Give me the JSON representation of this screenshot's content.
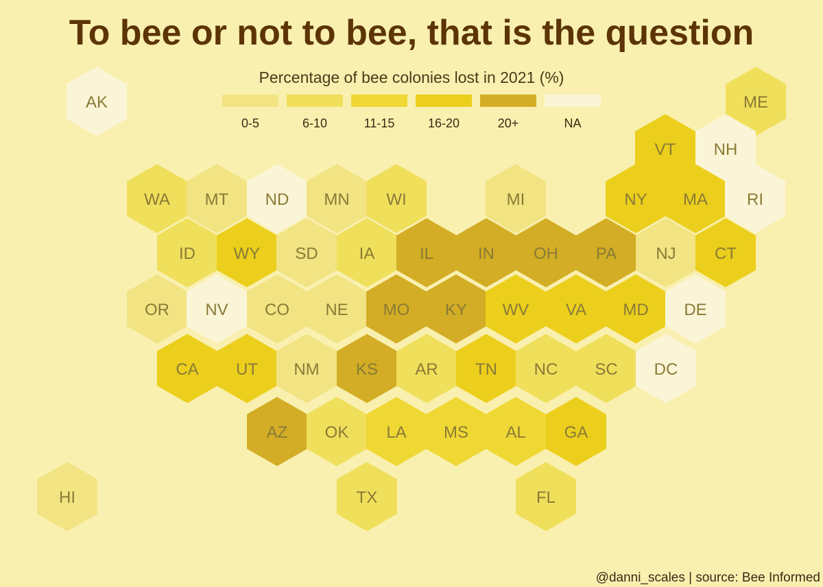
{
  "title": "To bee or not to bee, that is the question",
  "caption": "@danni_scales | source: Bee Informed",
  "legend": {
    "title": "Percentage of bee colonies lost in 2021 (%)",
    "items": [
      {
        "label": "0-5",
        "key": "0-5",
        "color": "#f2e383"
      },
      {
        "label": "6-10",
        "key": "6-10",
        "color": "#efdf5b"
      },
      {
        "label": "11-15",
        "key": "11-15",
        "color": "#efd834"
      },
      {
        "label": "16-20",
        "key": "16-20",
        "color": "#eccf1d"
      },
      {
        "label": "20+",
        "key": "20+",
        "color": "#d3ad25"
      },
      {
        "label": "NA",
        "key": "NA",
        "color": "#fbf5d7"
      }
    ]
  },
  "chart_data": {
    "type": "hexbin-map",
    "states": [
      {
        "abbr": "AK",
        "bin": "NA"
      },
      {
        "abbr": "ME",
        "bin": "6-10"
      },
      {
        "abbr": "VT",
        "bin": "16-20"
      },
      {
        "abbr": "NH",
        "bin": "NA"
      },
      {
        "abbr": "WA",
        "bin": "6-10"
      },
      {
        "abbr": "MT",
        "bin": "0-5"
      },
      {
        "abbr": "ND",
        "bin": "NA"
      },
      {
        "abbr": "MN",
        "bin": "0-5"
      },
      {
        "abbr": "WI",
        "bin": "6-10"
      },
      {
        "abbr": "MI",
        "bin": "0-5"
      },
      {
        "abbr": "NY",
        "bin": "16-20"
      },
      {
        "abbr": "MA",
        "bin": "16-20"
      },
      {
        "abbr": "RI",
        "bin": "NA"
      },
      {
        "abbr": "ID",
        "bin": "6-10"
      },
      {
        "abbr": "WY",
        "bin": "16-20"
      },
      {
        "abbr": "SD",
        "bin": "0-5"
      },
      {
        "abbr": "IA",
        "bin": "6-10"
      },
      {
        "abbr": "IL",
        "bin": "20+"
      },
      {
        "abbr": "IN",
        "bin": "20+"
      },
      {
        "abbr": "OH",
        "bin": "20+"
      },
      {
        "abbr": "PA",
        "bin": "20+"
      },
      {
        "abbr": "NJ",
        "bin": "0-5"
      },
      {
        "abbr": "CT",
        "bin": "16-20"
      },
      {
        "abbr": "OR",
        "bin": "0-5"
      },
      {
        "abbr": "NV",
        "bin": "NA"
      },
      {
        "abbr": "CO",
        "bin": "0-5"
      },
      {
        "abbr": "NE",
        "bin": "0-5"
      },
      {
        "abbr": "MO",
        "bin": "20+"
      },
      {
        "abbr": "KY",
        "bin": "20+"
      },
      {
        "abbr": "WV",
        "bin": "16-20"
      },
      {
        "abbr": "VA",
        "bin": "16-20"
      },
      {
        "abbr": "MD",
        "bin": "16-20"
      },
      {
        "abbr": "DE",
        "bin": "NA"
      },
      {
        "abbr": "CA",
        "bin": "16-20"
      },
      {
        "abbr": "UT",
        "bin": "16-20"
      },
      {
        "abbr": "NM",
        "bin": "0-5"
      },
      {
        "abbr": "KS",
        "bin": "20+"
      },
      {
        "abbr": "AR",
        "bin": "6-10"
      },
      {
        "abbr": "TN",
        "bin": "16-20"
      },
      {
        "abbr": "NC",
        "bin": "6-10"
      },
      {
        "abbr": "SC",
        "bin": "6-10"
      },
      {
        "abbr": "DC",
        "bin": "NA"
      },
      {
        "abbr": "AZ",
        "bin": "20+"
      },
      {
        "abbr": "OK",
        "bin": "6-10"
      },
      {
        "abbr": "LA",
        "bin": "11-15"
      },
      {
        "abbr": "MS",
        "bin": "11-15"
      },
      {
        "abbr": "AL",
        "bin": "11-15"
      },
      {
        "abbr": "GA",
        "bin": "16-20"
      },
      {
        "abbr": "HI",
        "bin": "0-5"
      },
      {
        "abbr": "TX",
        "bin": "6-10"
      },
      {
        "abbr": "FL",
        "bin": "6-10"
      }
    ]
  }
}
